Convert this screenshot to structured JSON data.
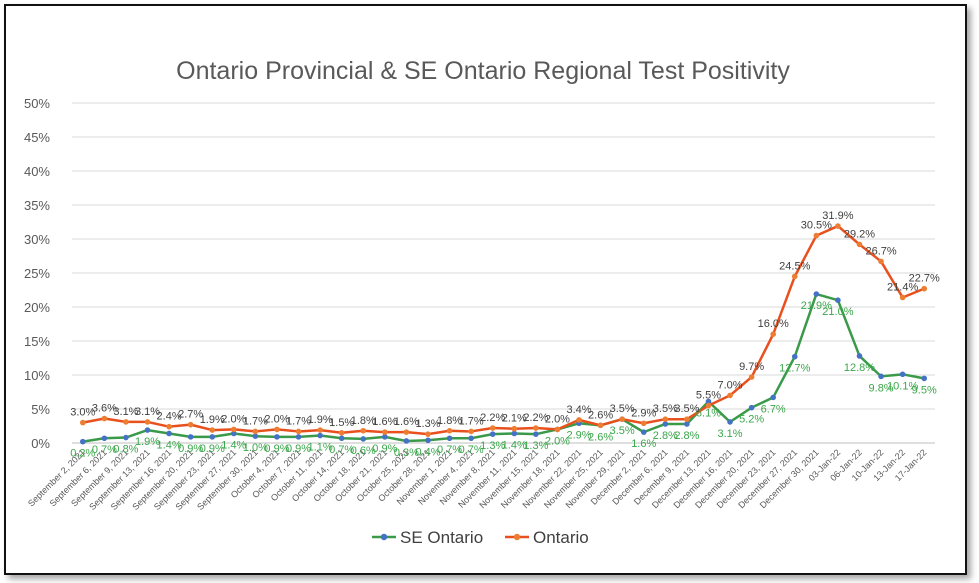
{
  "chart_data": {
    "type": "line",
    "title": "Ontario Provincial & SE Ontario Regional Test Positivity",
    "xlabel": "",
    "ylabel": "",
    "ylim": [
      0,
      50
    ],
    "y_ticks": [
      "0%",
      "5%",
      "10%",
      "15%",
      "20%",
      "25%",
      "30%",
      "35%",
      "40%",
      "45%",
      "50%"
    ],
    "grid": true,
    "legend_position": "bottom",
    "categories": [
      "September 2, 2021",
      "September 6, 2021",
      "September 9, 2021",
      "September 13, 2021",
      "September 16, 2021",
      "September 20, 2021",
      "September 23, 2021",
      "September 27, 2021",
      "September 30, 2021",
      "October 4, 2021",
      "October 7, 2021",
      "October 11, 2021",
      "October 14, 2021",
      "October 18, 2021",
      "October 21, 2021",
      "October 25, 2021",
      "October 28, 2021",
      "November 1, 2021",
      "November 4, 2021",
      "November 8, 2021",
      "November 11, 2021",
      "November 15, 2021",
      "November 18, 2021",
      "November 22, 2021",
      "November 25, 2021",
      "November 29, 2021",
      "December 2, 2021",
      "December 6, 2021",
      "December 9, 2021",
      "December 13, 2021",
      "December 16, 2021",
      "December 20, 2021",
      "December 23, 2021",
      "December 27, 2021",
      "December 30, 2021",
      "03-Jan-22",
      "06-Jan-22",
      "10-Jan-22",
      "13-Jan-22",
      "17-Jan-22"
    ],
    "series": [
      {
        "name": "SE Ontario",
        "color": "#3a9a4a",
        "marker_color": "#4472c4",
        "values": [
          0.2,
          0.7,
          0.8,
          1.9,
          1.4,
          0.9,
          0.9,
          1.4,
          1.0,
          0.9,
          0.9,
          1.1,
          0.7,
          0.6,
          0.9,
          0.3,
          0.4,
          0.7,
          0.7,
          1.3,
          1.4,
          1.3,
          2.0,
          2.9,
          2.6,
          3.5,
          1.6,
          2.8,
          2.8,
          6.1,
          3.1,
          5.2,
          6.7,
          12.7,
          21.9,
          21.0,
          12.8,
          9.8,
          10.1,
          9.5
        ],
        "labels": [
          "0.2%",
          "0.7%",
          "0.8%",
          "1.9%",
          "1.4%",
          "0.9%",
          "0.9%",
          "1.4%",
          "1.0%",
          "0.9%",
          "0.9%",
          "1.1%",
          "0.7%",
          "0.6%",
          "0.9%",
          "0.3%",
          "0.4%",
          "0.7%",
          "0.7%",
          "1.3%",
          "1.4%",
          "1.3%",
          "2.0%",
          "2.9%",
          "2.6%",
          "3.5%",
          "1.6%",
          "2.8%",
          "2.8%",
          "6.1%",
          "3.1%",
          "5.2%",
          "6.7%",
          "12.7%",
          "21.9%",
          "21.0%",
          "12.8%",
          "9.8%",
          "10.1%",
          "9.5%"
        ]
      },
      {
        "name": "Ontario",
        "color": "#e8501e",
        "marker_color": "#ed7d31",
        "values": [
          3.0,
          3.6,
          3.1,
          3.1,
          2.4,
          2.7,
          1.9,
          2.0,
          1.7,
          2.0,
          1.7,
          1.9,
          1.5,
          1.8,
          1.6,
          1.6,
          1.3,
          1.8,
          1.7,
          2.2,
          2.1,
          2.2,
          2.0,
          3.4,
          2.6,
          3.5,
          2.9,
          3.5,
          3.5,
          5.5,
          7.0,
          9.7,
          16.0,
          24.5,
          30.5,
          31.9,
          29.2,
          26.7,
          21.4,
          22.7
        ],
        "labels": [
          "3.0%",
          "3.6%",
          "3.1%",
          "3.1%",
          "2.4%",
          "2.7%",
          "1.9%",
          "2.0%",
          "1.7%",
          "2.0%",
          "1.7%",
          "1.9%",
          "1.5%",
          "1.8%",
          "1.6%",
          "1.6%",
          "1.3%",
          "1.8%",
          "1.7%",
          "2.2%",
          "2.1%",
          "2.2%",
          "2.0%",
          "3.4%",
          "2.6%",
          "3.5%",
          "2.9%",
          "3.5%",
          "3.5%",
          "5.5%",
          "7.0%",
          "9.7%",
          "16.0%",
          "24.5%",
          "30.5%",
          "31.9%",
          "29.2%",
          "26.7%",
          "21.4%",
          "22.7%"
        ]
      }
    ]
  }
}
